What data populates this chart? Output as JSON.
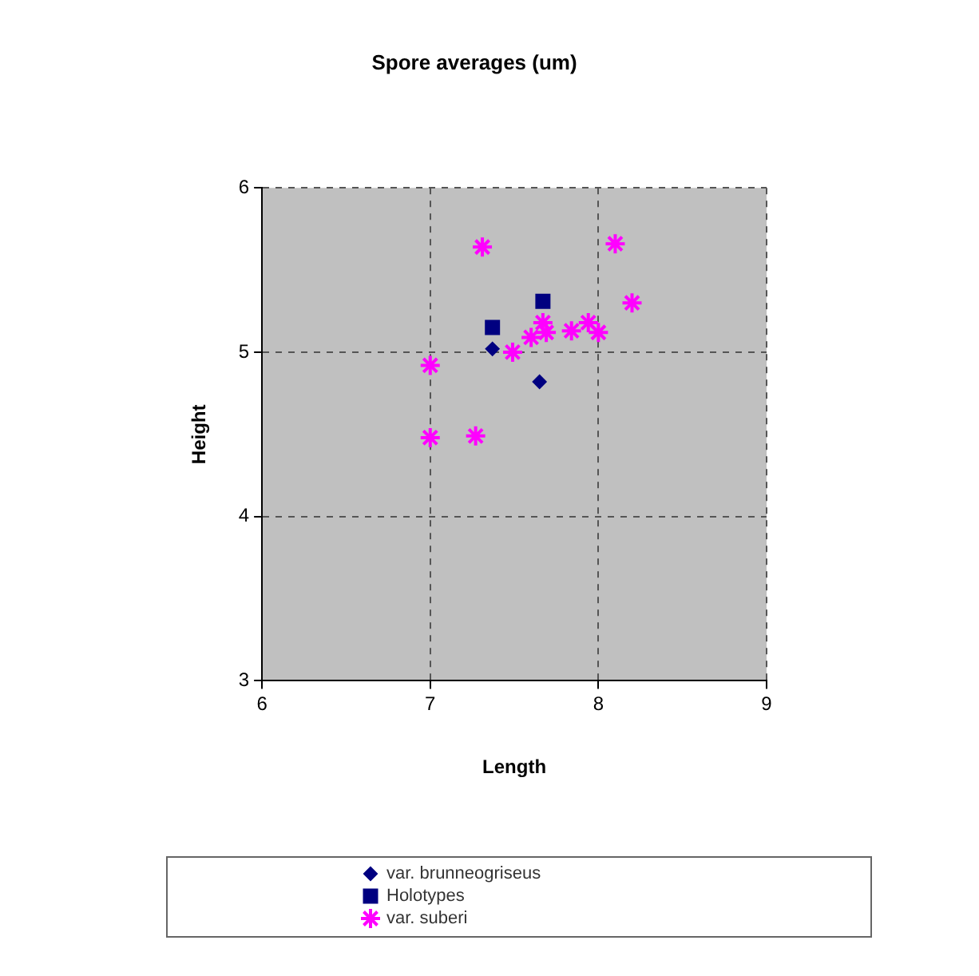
{
  "chart_data": {
    "type": "scatter",
    "title": "Spore averages (um)",
    "xlabel": "Length",
    "ylabel": "Height",
    "xlim": [
      6,
      9
    ],
    "xticks": [
      6,
      7,
      8,
      9
    ],
    "ylim": [
      3,
      6
    ],
    "yticks": [
      3,
      4,
      5,
      6
    ],
    "grid": true,
    "legend": "bottom",
    "line_style": "dashed",
    "series": [
      {
        "name": "var. brunneogriseus",
        "color": "#000080",
        "marker": "diamond",
        "x": [
          7.65,
          7.37
        ],
        "values": [
          4.82,
          5.02
        ]
      },
      {
        "name": "Holotypes",
        "color": "#000080",
        "marker": "square",
        "x": [
          7.37,
          7.67
        ],
        "values": [
          5.15,
          5.31
        ]
      },
      {
        "name": "var. suberi",
        "color": "#ff00ff",
        "marker": "cross",
        "x": [
          7.31,
          8.1,
          8.2,
          7.0,
          7.0,
          7.27,
          7.49,
          7.6,
          7.69,
          7.67,
          7.84,
          7.94,
          8.0
        ],
        "values": [
          5.64,
          5.66,
          5.3,
          4.92,
          4.48,
          4.49,
          5.0,
          5.09,
          5.12,
          5.18,
          5.13,
          5.18,
          5.12
        ]
      }
    ]
  }
}
